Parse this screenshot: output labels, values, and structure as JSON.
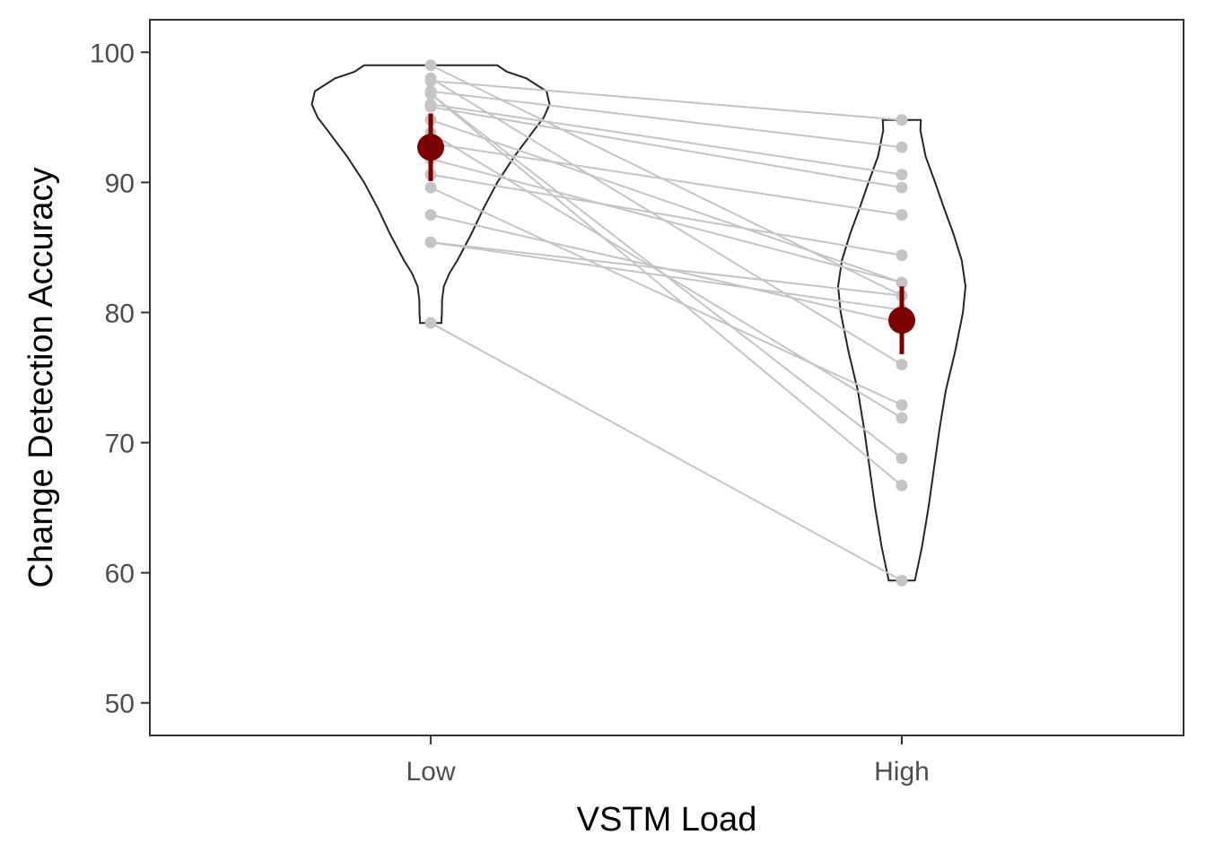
{
  "chart_data": {
    "type": "violin-paired-scatter",
    "xlabel": "VSTM Load",
    "ylabel": "Change Detection Accuracy",
    "categories": [
      "Low",
      "High"
    ],
    "ylim": [
      47.5,
      102.5
    ],
    "yticks": [
      50,
      60,
      70,
      80,
      90,
      100
    ],
    "grid": false,
    "colors": {
      "points": "#c4c4c4",
      "pair_lines": "#c4c4c4",
      "violin_outline": "#262626",
      "mean_marker": "#7b0000",
      "panel_border": "#333333"
    },
    "pairs": [
      [
        99.0,
        81.3
      ],
      [
        98.0,
        76.0
      ],
      [
        97.8,
        94.8
      ],
      [
        97.0,
        92.7
      ],
      [
        96.8,
        66.7
      ],
      [
        96.8,
        68.8
      ],
      [
        96.0,
        90.6
      ],
      [
        95.8,
        89.6
      ],
      [
        94.8,
        82.3
      ],
      [
        93.8,
        71.9
      ],
      [
        93.0,
        87.5
      ],
      [
        91.8,
        82.3
      ],
      [
        90.6,
        84.4
      ],
      [
        89.6,
        72.9
      ],
      [
        87.5,
        79.2
      ],
      [
        85.4,
        80.2
      ],
      [
        85.4,
        81.3
      ],
      [
        79.2,
        59.4
      ]
    ],
    "means": [
      {
        "category": "Low",
        "mean": 92.7,
        "ci": [
          90.1,
          95.3
        ]
      },
      {
        "category": "High",
        "mean": 79.4,
        "ci": [
          76.8,
          82.0
        ]
      }
    ],
    "violins": [
      {
        "category": "Low",
        "range": [
          79.2,
          99.0
        ],
        "density": [
          [
            79.2,
            0.045
          ],
          [
            80.0,
            0.047
          ],
          [
            81.0,
            0.048
          ],
          [
            82.0,
            0.055
          ],
          [
            83.0,
            0.078
          ],
          [
            84.0,
            0.112
          ],
          [
            86.0,
            0.17
          ],
          [
            88.0,
            0.222
          ],
          [
            90.0,
            0.28
          ],
          [
            92.0,
            0.352
          ],
          [
            94.0,
            0.434
          ],
          [
            95.0,
            0.476
          ],
          [
            96.0,
            0.5
          ],
          [
            97.0,
            0.487
          ],
          [
            98.0,
            0.402
          ],
          [
            98.5,
            0.32
          ],
          [
            99.0,
            0.28
          ]
        ]
      },
      {
        "category": "High",
        "range": [
          59.4,
          94.8
        ],
        "density": [
          [
            59.4,
            0.055
          ],
          [
            60.0,
            0.062
          ],
          [
            62.0,
            0.085
          ],
          [
            65.0,
            0.112
          ],
          [
            68.0,
            0.135
          ],
          [
            71.0,
            0.158
          ],
          [
            74.0,
            0.185
          ],
          [
            77.0,
            0.224
          ],
          [
            80.0,
            0.257
          ],
          [
            82.0,
            0.268
          ],
          [
            84.0,
            0.252
          ],
          [
            86.0,
            0.218
          ],
          [
            88.0,
            0.178
          ],
          [
            90.0,
            0.14
          ],
          [
            92.0,
            0.1
          ],
          [
            94.0,
            0.078
          ],
          [
            94.8,
            0.08
          ]
        ]
      }
    ]
  }
}
